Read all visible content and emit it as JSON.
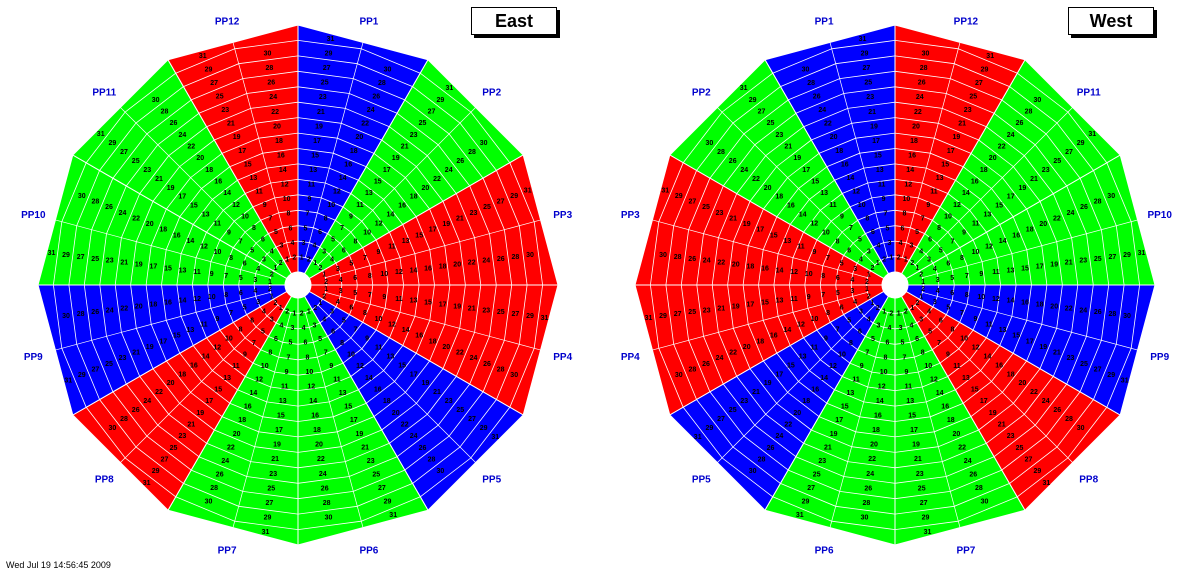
{
  "colors": {
    "red": "#ff0000",
    "green": "#00ff00",
    "blue": "#0000ff",
    "label": "#0000cc",
    "hub": "#ffffff",
    "outline": "#ffffff"
  },
  "footer": {
    "text": "Wed Jul 19 14:56:45 2009"
  },
  "rings": 16,
  "tile_labels": [
    "1",
    "2",
    "3",
    "4",
    "5",
    "6",
    "7",
    "8",
    "9",
    "10",
    "11",
    "12",
    "13",
    "14",
    "15",
    "16",
    "17",
    "18",
    "19",
    "20",
    "21",
    "22",
    "23",
    "24",
    "25",
    "26",
    "27",
    "28",
    "29",
    "30",
    "31"
  ],
  "wheels": [
    {
      "title": "East",
      "direction": "clockwise",
      "sectors": [
        {
          "label": "PP1",
          "color": "blue"
        },
        {
          "label": "PP2",
          "color": "green"
        },
        {
          "label": "PP3",
          "color": "red"
        },
        {
          "label": "PP4",
          "color": "red"
        },
        {
          "label": "PP5",
          "color": "blue"
        },
        {
          "label": "PP6",
          "color": "green"
        },
        {
          "label": "PP7",
          "color": "green"
        },
        {
          "label": "PP8",
          "color": "red"
        },
        {
          "label": "PP9",
          "color": "blue"
        },
        {
          "label": "PP10",
          "color": "green"
        },
        {
          "label": "PP11",
          "color": "green"
        },
        {
          "label": "PP12",
          "color": "red"
        }
      ]
    },
    {
      "title": "West",
      "direction": "counterclockwise",
      "sectors": [
        {
          "label": "PP1",
          "color": "blue"
        },
        {
          "label": "PP2",
          "color": "green"
        },
        {
          "label": "PP3",
          "color": "red"
        },
        {
          "label": "PP4",
          "color": "red"
        },
        {
          "label": "PP5",
          "color": "blue"
        },
        {
          "label": "PP6",
          "color": "green"
        },
        {
          "label": "PP7",
          "color": "green"
        },
        {
          "label": "PP8",
          "color": "red"
        },
        {
          "label": "PP9",
          "color": "blue"
        },
        {
          "label": "PP10",
          "color": "green"
        },
        {
          "label": "PP11",
          "color": "green"
        },
        {
          "label": "PP12",
          "color": "red"
        }
      ]
    }
  ]
}
